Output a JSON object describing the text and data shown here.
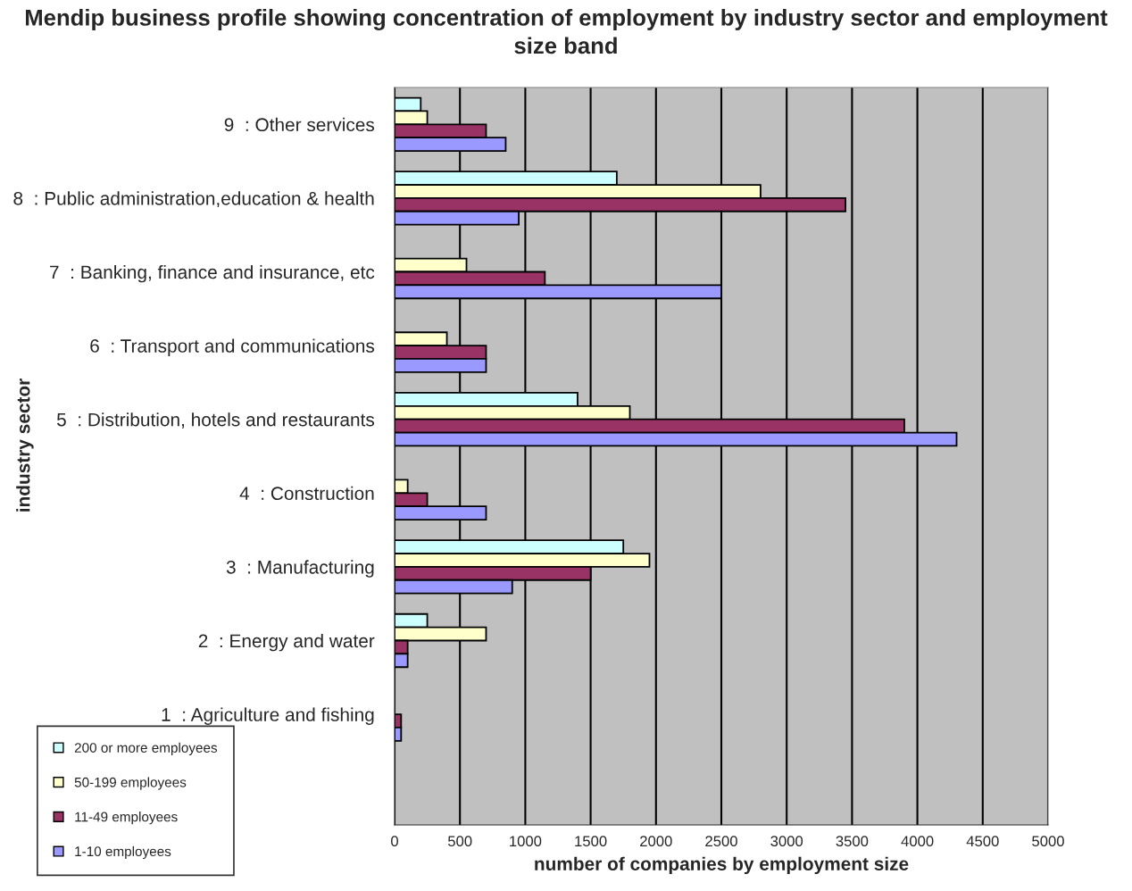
{
  "chart_data": {
    "type": "bar",
    "orientation": "horizontal",
    "title": "Mendip business profile showing concentration of employment by industry sector and employment size band",
    "xlabel": "number of companies by employment size",
    "ylabel": "industry sector",
    "categories": [
      "9  : Other services",
      "8  : Public administration,education & health",
      "7  : Banking, finance and insurance, etc",
      "6  : Transport and communications",
      "5  : Distribution, hotels and restaurants",
      "4  : Construction",
      "3  : Manufacturing",
      "2  : Energy and water",
      "1  : Agriculture and fishing"
    ],
    "series": [
      {
        "name": "200 or more employees",
        "color": "#ccffff",
        "values": [
          200,
          1700,
          null,
          null,
          1400,
          null,
          1750,
          250,
          null
        ]
      },
      {
        "name": "50-199 employees",
        "color": "#ffffcc",
        "values": [
          250,
          2800,
          550,
          400,
          1800,
          100,
          1950,
          700,
          null
        ]
      },
      {
        "name": "11-49 employees",
        "color": "#993366",
        "values": [
          700,
          3450,
          1150,
          700,
          3900,
          250,
          1500,
          100,
          50
        ]
      },
      {
        "name": "1-10 employees",
        "color": "#9999ff",
        "values": [
          850,
          950,
          2500,
          700,
          4300,
          700,
          900,
          100,
          50
        ]
      }
    ],
    "xlim": [
      0,
      5000
    ],
    "xticks": [
      0,
      500,
      1000,
      1500,
      2000,
      2500,
      3000,
      3500,
      4000,
      4500,
      5000
    ],
    "grid": "x",
    "legend": "bottom left"
  }
}
